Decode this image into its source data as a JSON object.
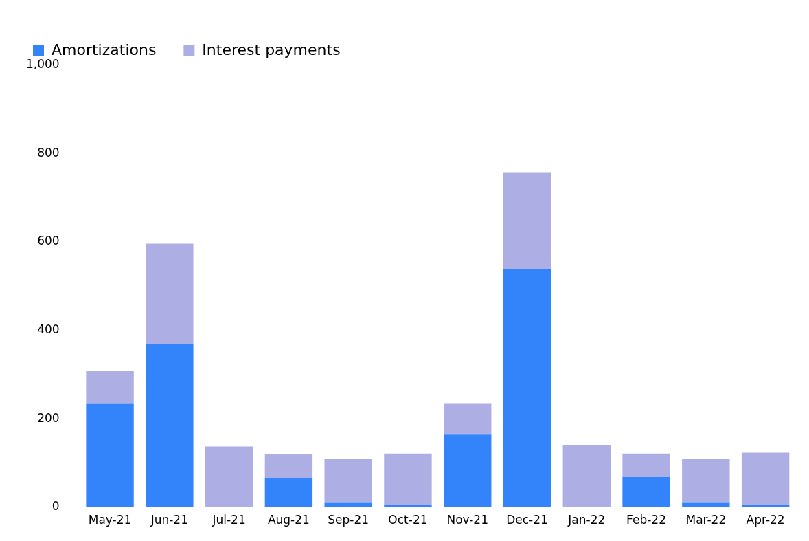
{
  "chart_data": {
    "type": "bar",
    "stacked": true,
    "categories": [
      "May-21",
      "Jun-21",
      "Jul-21",
      "Aug-21",
      "Sep-21",
      "Oct-21",
      "Nov-21",
      "Dec-21",
      "Jan-22",
      "Feb-22",
      "Mar-22",
      "Apr-22"
    ],
    "series": [
      {
        "name": "Amortizations",
        "color": "#3384fa",
        "values": [
          235,
          368,
          null,
          65,
          11,
          4,
          164,
          538,
          null,
          68,
          11,
          4
        ]
      },
      {
        "name": "Interest payments",
        "color": "#adaee3",
        "values": [
          74,
          228,
          137,
          55,
          98,
          117,
          71,
          220,
          140,
          53,
          98,
          119
        ]
      }
    ],
    "ylim": [
      0,
      1000
    ],
    "yticks": [
      0,
      200,
      400,
      600,
      800,
      {
        "value": 1000,
        "label": "1,000"
      }
    ],
    "grid": false,
    "legend": "top"
  }
}
